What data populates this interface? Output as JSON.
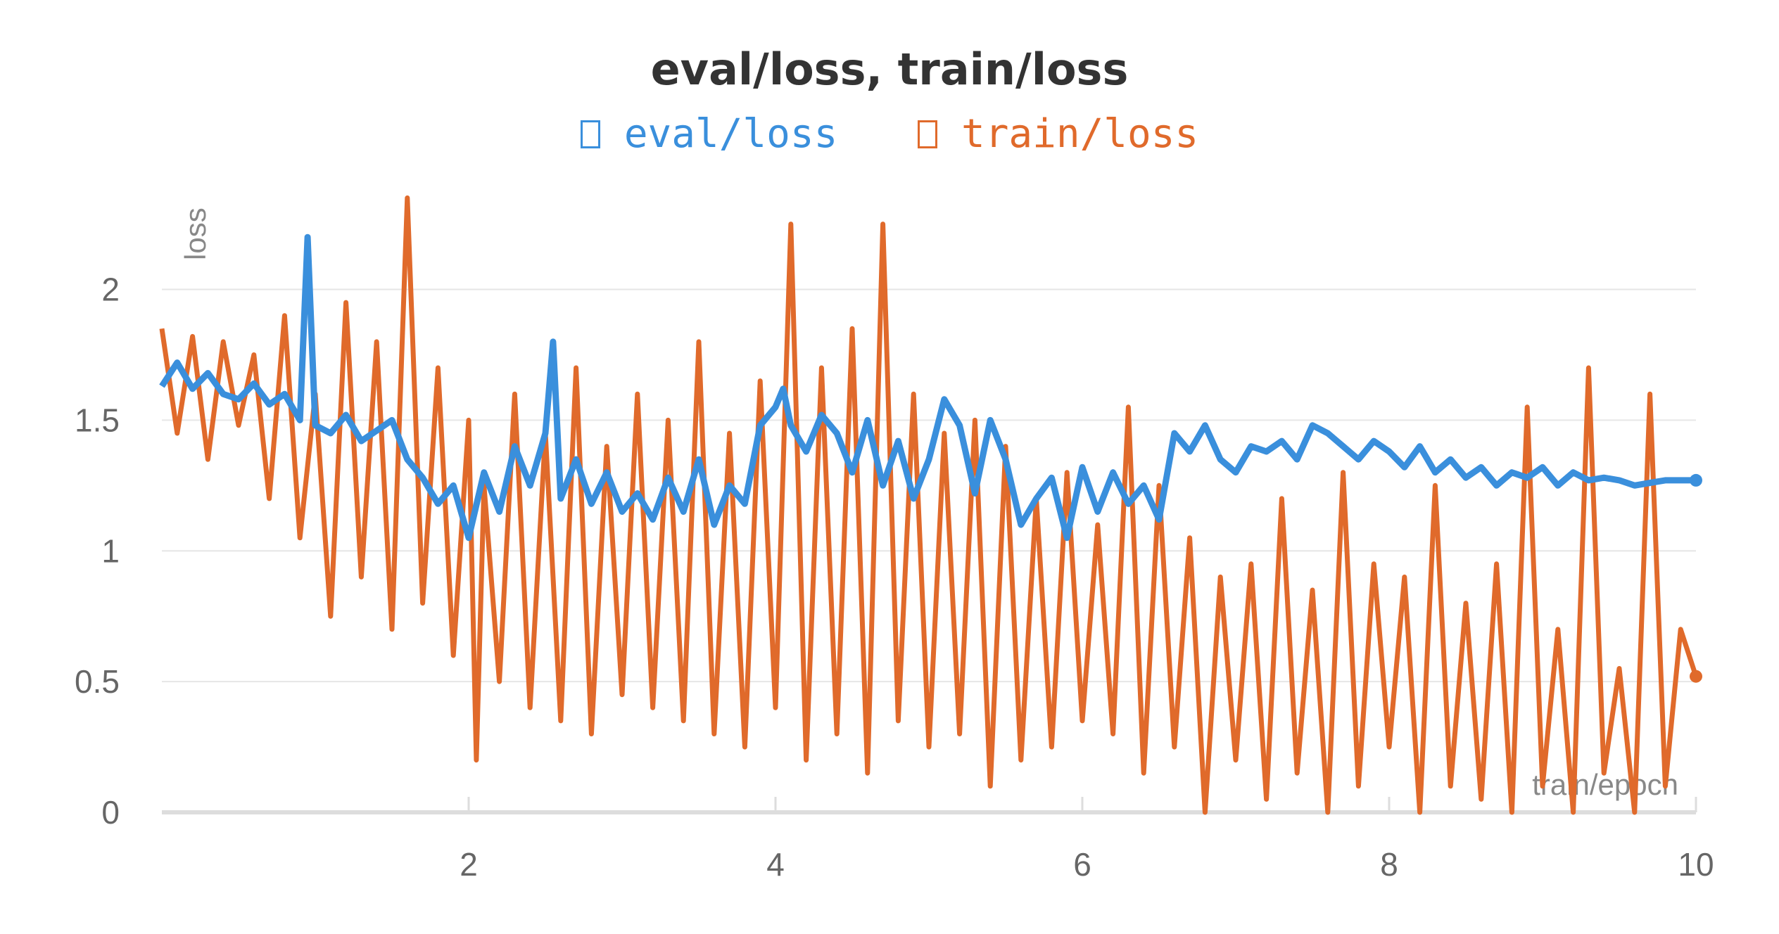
{
  "chart_data": {
    "type": "line",
    "title": "eval/loss, train/loss",
    "xlabel": "train/epoch",
    "ylabel": "loss",
    "xlim": [
      0,
      10
    ],
    "ylim": [
      0,
      2.3
    ],
    "x_ticks": [
      "2",
      "4",
      "6",
      "8",
      "10"
    ],
    "y_ticks": [
      "0",
      "0.5",
      "1",
      "1.5",
      "2"
    ],
    "grid": true,
    "legend_position": "top-center",
    "series": [
      {
        "name": "eval/loss",
        "color": "#3a8fdc",
        "x": [
          0.0,
          0.1,
          0.2,
          0.3,
          0.4,
          0.5,
          0.6,
          0.7,
          0.8,
          0.9,
          0.95,
          1.0,
          1.1,
          1.2,
          1.3,
          1.4,
          1.5,
          1.6,
          1.7,
          1.8,
          1.9,
          2.0,
          2.1,
          2.2,
          2.3,
          2.4,
          2.5,
          2.55,
          2.6,
          2.7,
          2.8,
          2.9,
          3.0,
          3.1,
          3.2,
          3.3,
          3.4,
          3.5,
          3.6,
          3.7,
          3.8,
          3.9,
          4.0,
          4.05,
          4.1,
          4.2,
          4.3,
          4.4,
          4.5,
          4.6,
          4.7,
          4.8,
          4.9,
          5.0,
          5.1,
          5.2,
          5.3,
          5.4,
          5.5,
          5.6,
          5.7,
          5.8,
          5.9,
          6.0,
          6.1,
          6.2,
          6.3,
          6.4,
          6.5,
          6.6,
          6.7,
          6.8,
          6.9,
          7.0,
          7.1,
          7.2,
          7.3,
          7.4,
          7.5,
          7.6,
          7.7,
          7.8,
          7.9,
          8.0,
          8.1,
          8.2,
          8.3,
          8.4,
          8.5,
          8.6,
          8.7,
          8.8,
          8.9,
          9.0,
          9.1,
          9.2,
          9.3,
          9.4,
          9.5,
          9.6,
          9.7,
          9.8,
          9.9,
          10.0
        ],
        "values": [
          1.63,
          1.72,
          1.62,
          1.68,
          1.6,
          1.58,
          1.64,
          1.56,
          1.6,
          1.5,
          2.2,
          1.48,
          1.45,
          1.52,
          1.42,
          1.46,
          1.5,
          1.35,
          1.28,
          1.18,
          1.25,
          1.05,
          1.3,
          1.15,
          1.4,
          1.25,
          1.45,
          1.8,
          1.2,
          1.35,
          1.18,
          1.3,
          1.15,
          1.22,
          1.12,
          1.28,
          1.15,
          1.35,
          1.1,
          1.25,
          1.18,
          1.48,
          1.55,
          1.62,
          1.48,
          1.38,
          1.52,
          1.45,
          1.3,
          1.5,
          1.25,
          1.42,
          1.2,
          1.35,
          1.58,
          1.48,
          1.22,
          1.5,
          1.35,
          1.1,
          1.2,
          1.28,
          1.05,
          1.32,
          1.15,
          1.3,
          1.18,
          1.25,
          1.12,
          1.45,
          1.38,
          1.48,
          1.35,
          1.3,
          1.4,
          1.38,
          1.42,
          1.35,
          1.48,
          1.45,
          1.4,
          1.35,
          1.42,
          1.38,
          1.32,
          1.4,
          1.3,
          1.35,
          1.28,
          1.32,
          1.25,
          1.3,
          1.28,
          1.32,
          1.25,
          1.3,
          1.27,
          1.28,
          1.27,
          1.25,
          1.26,
          1.27,
          1.27,
          1.27
        ]
      },
      {
        "name": "train/loss",
        "color": "#e06a2b",
        "x": [
          0.0,
          0.1,
          0.2,
          0.3,
          0.4,
          0.5,
          0.6,
          0.7,
          0.8,
          0.9,
          1.0,
          1.1,
          1.2,
          1.3,
          1.4,
          1.5,
          1.6,
          1.7,
          1.8,
          1.9,
          2.0,
          2.05,
          2.1,
          2.2,
          2.3,
          2.4,
          2.5,
          2.6,
          2.7,
          2.8,
          2.9,
          3.0,
          3.1,
          3.2,
          3.3,
          3.4,
          3.5,
          3.6,
          3.7,
          3.8,
          3.9,
          4.0,
          4.1,
          4.2,
          4.3,
          4.4,
          4.5,
          4.6,
          4.7,
          4.8,
          4.9,
          5.0,
          5.1,
          5.2,
          5.3,
          5.4,
          5.5,
          5.6,
          5.7,
          5.8,
          5.9,
          6.0,
          6.1,
          6.2,
          6.3,
          6.4,
          6.5,
          6.6,
          6.7,
          6.8,
          6.9,
          7.0,
          7.1,
          7.2,
          7.3,
          7.4,
          7.5,
          7.6,
          7.7,
          7.8,
          7.9,
          8.0,
          8.1,
          8.2,
          8.3,
          8.4,
          8.5,
          8.6,
          8.7,
          8.8,
          8.9,
          9.0,
          9.1,
          9.2,
          9.3,
          9.4,
          9.5,
          9.6,
          9.7,
          9.8,
          9.9,
          10.0
        ],
        "values": [
          1.85,
          1.45,
          1.82,
          1.35,
          1.8,
          1.48,
          1.75,
          1.2,
          1.9,
          1.05,
          1.6,
          0.75,
          1.95,
          0.9,
          1.8,
          0.7,
          2.35,
          0.8,
          1.7,
          0.6,
          1.5,
          0.2,
          1.25,
          0.5,
          1.6,
          0.4,
          1.45,
          0.35,
          1.7,
          0.3,
          1.4,
          0.45,
          1.6,
          0.4,
          1.5,
          0.35,
          1.8,
          0.3,
          1.45,
          0.25,
          1.65,
          0.4,
          2.25,
          0.2,
          1.7,
          0.3,
          1.85,
          0.15,
          2.25,
          0.35,
          1.6,
          0.25,
          1.45,
          0.3,
          1.5,
          0.1,
          1.4,
          0.2,
          1.2,
          0.25,
          1.3,
          0.35,
          1.1,
          0.3,
          1.55,
          0.15,
          1.25,
          0.25,
          1.05,
          0.0,
          0.9,
          0.2,
          0.95,
          0.05,
          1.2,
          0.15,
          0.85,
          0.0,
          1.3,
          0.1,
          0.95,
          0.25,
          0.9,
          0.0,
          1.25,
          0.1,
          0.8,
          0.05,
          0.95,
          0.0,
          1.55,
          0.1,
          0.7,
          0.0,
          1.7,
          0.15,
          0.55,
          0.0,
          1.6,
          0.1,
          0.7,
          0.52
        ]
      }
    ]
  }
}
